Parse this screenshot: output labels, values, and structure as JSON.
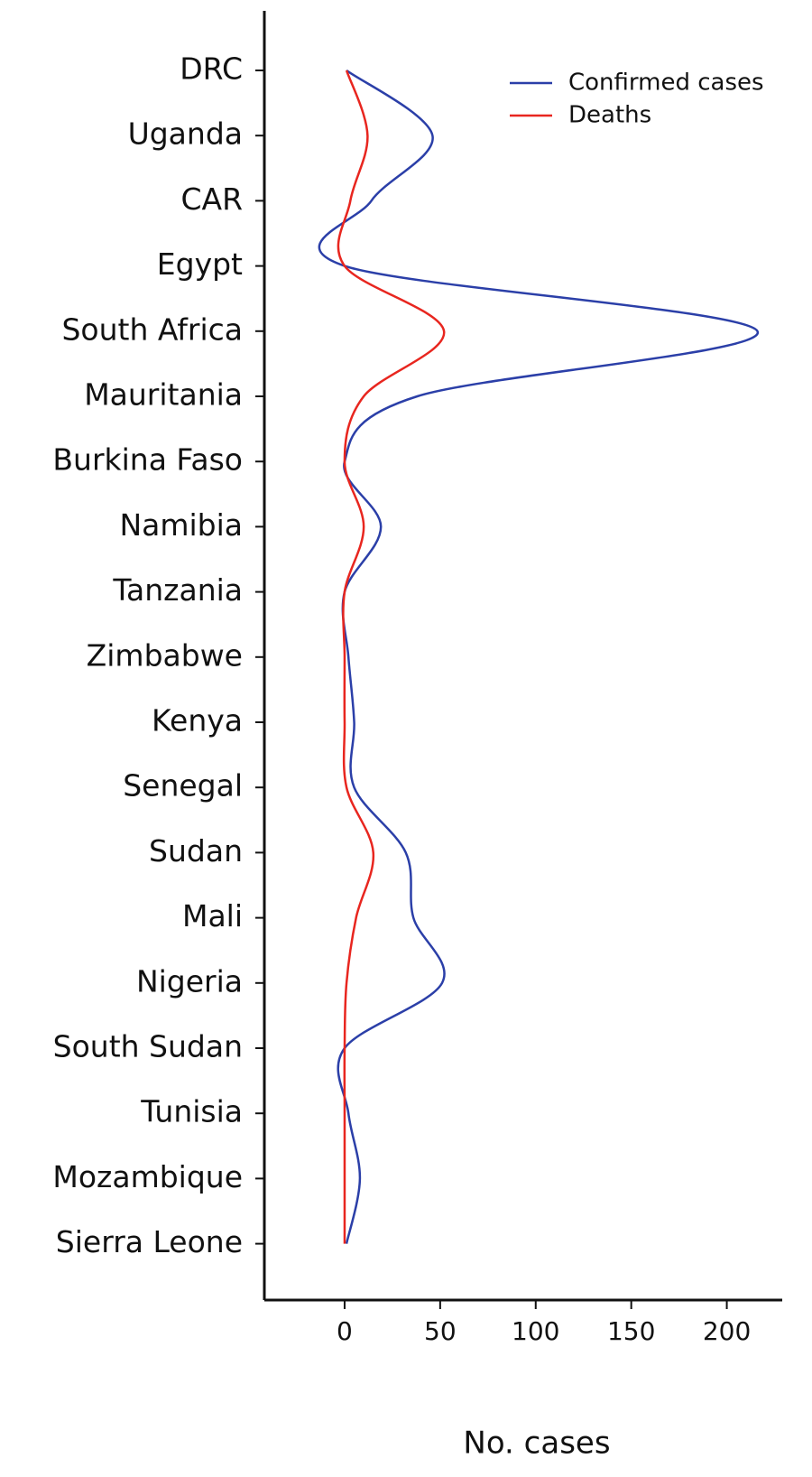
{
  "chart_data": {
    "type": "line",
    "categories": [
      "DRC",
      "Uganda",
      "CAR",
      "Egypt",
      "South Africa",
      "Mauritania",
      "Burkina Faso",
      "Namibia",
      "Tanzania",
      "Zimbabwe",
      "Kenya",
      "Senegal",
      "Sudan",
      "Mali",
      "Nigeria",
      "South Sudan",
      "Tunisia",
      "Mozambique",
      "Sierra Leone"
    ],
    "series": [
      {
        "name": "Confirmed cases",
        "color": "#2b3fa8",
        "values": [
          1,
          46,
          14,
          0,
          216,
          38,
          0,
          19,
          0,
          2,
          5,
          5,
          32,
          36,
          51,
          0,
          2,
          8,
          1
        ]
      },
      {
        "name": "Deaths",
        "color": "#e8261f",
        "values": [
          1,
          12,
          3,
          0,
          52,
          10,
          0,
          10,
          0,
          0,
          0,
          1,
          15,
          6,
          1,
          0,
          0,
          0,
          0
        ]
      }
    ],
    "xlabel": "No. cases",
    "xlim": [
      -42,
      229
    ],
    "xticks": [
      0,
      50,
      100,
      150,
      200
    ],
    "legend": "upper right"
  }
}
